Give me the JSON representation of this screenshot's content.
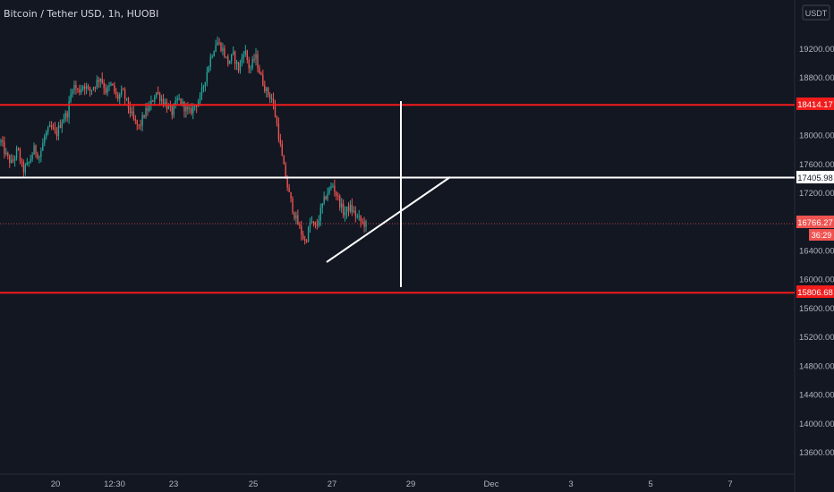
{
  "header": {
    "title": "Bitcoin / Tether USD, 1h, HUOBI"
  },
  "axis": {
    "currency": "USDT",
    "y_ticks": [
      "19200.00",
      "18800.00",
      "18000.00",
      "17600.00",
      "17200.00",
      "16400.00",
      "16000.00",
      "15600.00",
      "15200.00",
      "14800.00",
      "14400.00",
      "14000.00",
      "13600.00"
    ],
    "x_ticks": [
      "20",
      "12:30",
      "23",
      "25",
      "27",
      "29",
      "Dec",
      "3",
      "5",
      "7"
    ]
  },
  "colors": {
    "background": "#131722",
    "bull": "#26a69a",
    "bear": "#ef5350",
    "support_resistance": "#f21c1c",
    "drawing": "#ffffff"
  },
  "levels": {
    "resistance_label": "18414.17",
    "middle_label": "17405.98",
    "current_price_label": "16766.27",
    "countdown_label": "36:29",
    "support_label": "15806.68"
  },
  "chart_data": {
    "type": "candlestick",
    "title": "Bitcoin / Tether USD, 1h, HUOBI",
    "y_axis_range": [
      13400,
      19800
    ],
    "y_ticks": [
      13600,
      14000,
      14400,
      14800,
      15200,
      15600,
      16000,
      16400,
      17200,
      17600,
      18000,
      18800,
      19200
    ],
    "x_tick_labels": [
      "20",
      "12:30",
      "23",
      "25",
      "27",
      "29",
      "Dec",
      "3",
      "5",
      "7"
    ],
    "horizontal_lines": [
      {
        "price": 18414.17,
        "color": "red"
      },
      {
        "price": 17405.98,
        "color": "white"
      },
      {
        "price": 15806.68,
        "color": "red"
      }
    ],
    "current_price": 16766.27,
    "countdown": "36:29",
    "price_path_approx": [
      17900,
      17700,
      17600,
      17800,
      17500,
      17600,
      17800,
      17700,
      18000,
      18100,
      18000,
      18200,
      18300,
      18700,
      18600,
      18700,
      18600,
      18700,
      18800,
      18600,
      18700,
      18500,
      18600,
      18400,
      18200,
      18100,
      18300,
      18400,
      18600,
      18500,
      18400,
      18300,
      18500,
      18400,
      18300,
      18400,
      18500,
      18800,
      19100,
      19300,
      19200,
      19000,
      19100,
      18900,
      19200,
      18900,
      19100,
      18800,
      18600,
      18500,
      18100,
      17600,
      17200,
      16900,
      16700,
      16500,
      16800,
      16700,
      17000,
      17200,
      17300,
      17100,
      16900,
      17000,
      16900,
      16800,
      16750
    ],
    "drawings": [
      {
        "shape": "vertical-line",
        "x_label": "29",
        "price_top": 18450,
        "price_bottom": 15850
      },
      {
        "shape": "trendline",
        "from_price": 16250,
        "to_price": 17400
      }
    ]
  }
}
